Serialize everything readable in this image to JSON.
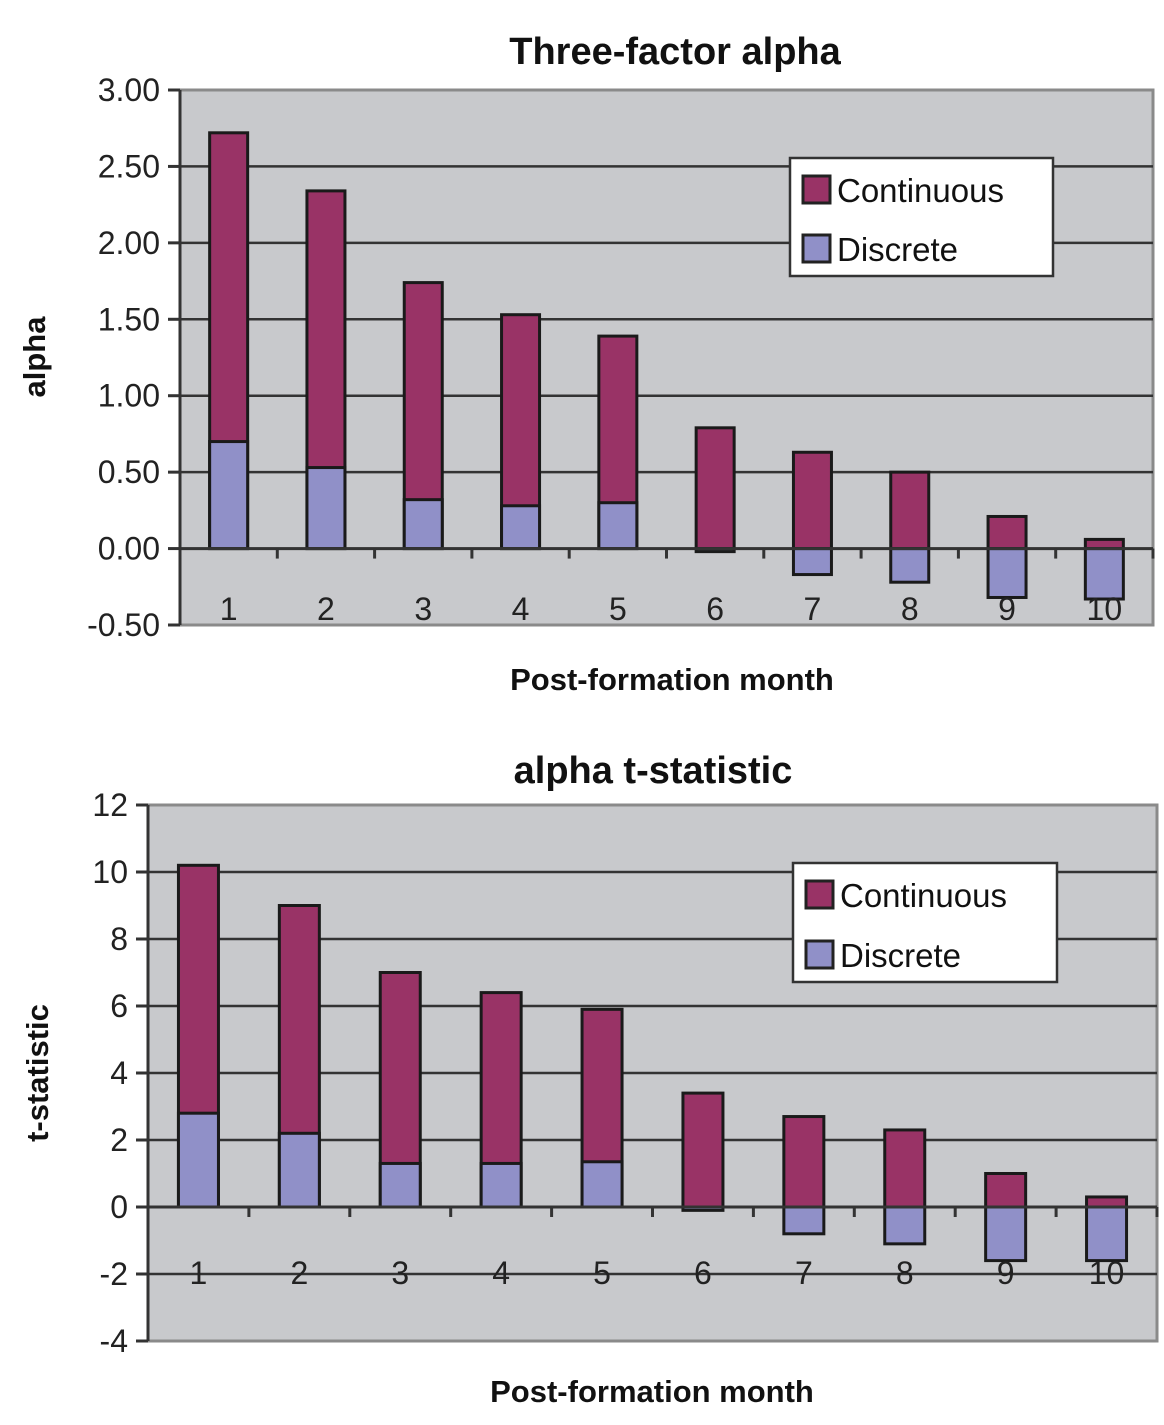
{
  "colors": {
    "continuous": "#993366",
    "discrete": "#9090C8",
    "plot_background": "#C8C9CC",
    "gridline": "#333333",
    "bar_border": "#1a1a1a"
  },
  "chart_data": [
    {
      "type": "bar",
      "stacking": "overlapped",
      "title": "Three-factor alpha",
      "xlabel": "Post-formation month",
      "ylabel": "alpha",
      "categories": [
        "1",
        "2",
        "3",
        "4",
        "5",
        "6",
        "7",
        "8",
        "9",
        "10"
      ],
      "series": [
        {
          "name": "Continuous",
          "values": [
            2.72,
            2.34,
            1.74,
            1.53,
            1.39,
            0.79,
            0.63,
            0.5,
            0.21,
            0.06
          ]
        },
        {
          "name": "Discrete",
          "values": [
            0.7,
            0.53,
            0.32,
            0.28,
            0.3,
            -0.02,
            -0.17,
            -0.22,
            -0.32,
            -0.33
          ]
        }
      ],
      "ylim": [
        -0.5,
        3.0
      ],
      "yticks": [
        3.0,
        2.5,
        2.0,
        1.5,
        1.0,
        0.5,
        0.0,
        -0.5
      ],
      "ytick_labels": [
        "3.00",
        "2.50",
        "2.00",
        "1.50",
        "1.00",
        "0.50",
        "0.00",
        "-0.50"
      ],
      "grid": true,
      "legend": {
        "position": "top-right",
        "entries": [
          "Continuous",
          "Discrete"
        ]
      }
    },
    {
      "type": "bar",
      "stacking": "overlapped",
      "title": "alpha t-statistic",
      "xlabel": "Post-formation month",
      "ylabel": "t-statistic",
      "categories": [
        "1",
        "2",
        "3",
        "4",
        "5",
        "6",
        "7",
        "8",
        "9",
        "10"
      ],
      "series": [
        {
          "name": "Continuous",
          "values": [
            10.2,
            9.0,
            7.0,
            6.4,
            5.9,
            3.4,
            2.7,
            2.3,
            1.0,
            0.3
          ]
        },
        {
          "name": "Discrete",
          "values": [
            2.8,
            2.2,
            1.3,
            1.3,
            1.35,
            -0.1,
            -0.8,
            -1.1,
            -1.6,
            -1.6
          ]
        }
      ],
      "ylim": [
        -4,
        12
      ],
      "yticks": [
        12,
        10,
        8,
        6,
        4,
        2,
        0,
        -2,
        -4
      ],
      "ytick_labels": [
        "12",
        "10",
        "8",
        "6",
        "4",
        "2",
        "0",
        "-2",
        "-4"
      ],
      "grid": true,
      "legend": {
        "position": "top-right",
        "entries": [
          "Continuous",
          "Discrete"
        ]
      }
    }
  ]
}
